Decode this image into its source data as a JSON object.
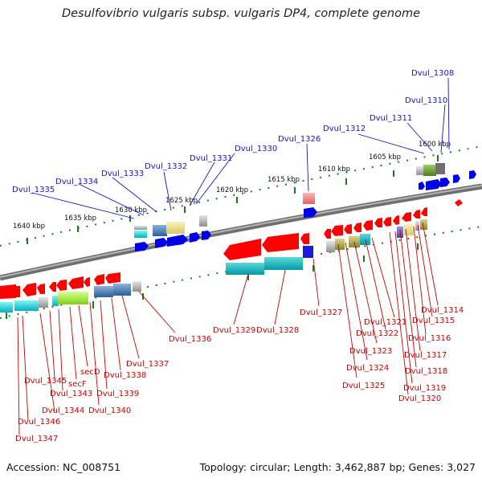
{
  "title": "Desulfovibrio vulgaris subsp. vulgaris DP4, complete genome",
  "footer": {
    "accession": "Accession: NC_008751",
    "summary": "Topology: circular; Length: 3,462,887 bp; Genes: 3,027"
  },
  "colors": {
    "backbone": "#8a8a8a",
    "tick_green": "#1e7a1e",
    "upper_labels": "#1515c8",
    "lower_labels": "#cc0000",
    "gene_red": "#ff0000",
    "gene_blue": "#0000e6"
  },
  "kbp_labels": [
    "1600 kbp",
    "1605 kbp",
    "1610 kbp",
    "1615 kbp",
    "1620 kbp",
    "1625 kbp",
    "1630 kbp",
    "1635 kbp",
    "1640 kbp"
  ],
  "upper_genes": [
    "Dvul_1308",
    "Dvul_1310",
    "Dvul_1311",
    "Dvul_1312",
    "Dvul_1326",
    "Dvul_1330",
    "Dvul_1331",
    "Dvul_1332",
    "Dvul_1333",
    "Dvul_1334",
    "Dvul_1335"
  ],
  "lower_genes": [
    "Dvul_1314",
    "Dvul_1315",
    "Dvul_1316",
    "Dvul_1317",
    "Dvul_1318",
    "Dvul_1319",
    "Dvul_1320",
    "Dvul_1321",
    "Dvul_1322",
    "Dvul_1323",
    "Dvul_1324",
    "Dvul_1325",
    "Dvul_1327",
    "Dvul_1328",
    "Dvul_1329",
    "Dvul_1336",
    "Dvul_1337",
    "Dvul_1338",
    "Dvul_1339",
    "Dvul_1340",
    "secD",
    "secF",
    "Dvul_1343",
    "Dvul_1344",
    "Dvul_1345",
    "Dvul_1346",
    "Dvul_1347"
  ]
}
